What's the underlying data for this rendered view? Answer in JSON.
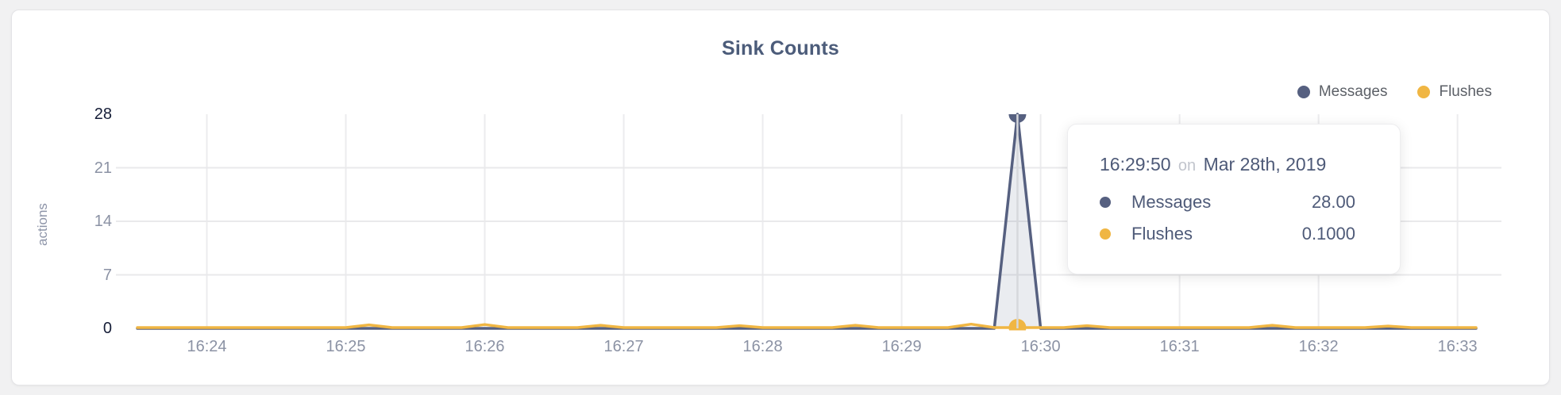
{
  "page": {
    "background": "#f1f1f2",
    "card_background": "#ffffff"
  },
  "chart_data": {
    "type": "line",
    "title": "Sink Counts",
    "xlabel": "",
    "ylabel": "actions",
    "ylim": [
      0,
      28
    ],
    "y_ticks": [
      0,
      7,
      14,
      21,
      28
    ],
    "y_ticks_emphasized": [
      0,
      28
    ],
    "x_ticks": [
      "16:24",
      "16:25",
      "16:26",
      "16:27",
      "16:28",
      "16:29",
      "16:30",
      "16:31",
      "16:32",
      "16:33"
    ],
    "x_start": "16:23:30",
    "x_end": "16:33:08",
    "sample_interval_seconds": 10,
    "grid": true,
    "legend_position": "top-right",
    "series": [
      {
        "name": "Messages",
        "color": "#566080",
        "fill": "rgba(86,96,128,0.12)",
        "baseline": 0,
        "points": [
          {
            "time": "16:29:50",
            "value": 28
          }
        ]
      },
      {
        "name": "Flushes",
        "color": "#f0b643",
        "baseline": 0.1,
        "points": [
          {
            "time": "16:25:10",
            "value": 0.45
          },
          {
            "time": "16:26:00",
            "value": 0.5
          },
          {
            "time": "16:26:50",
            "value": 0.4
          },
          {
            "time": "16:27:50",
            "value": 0.35
          },
          {
            "time": "16:28:40",
            "value": 0.4
          },
          {
            "time": "16:29:30",
            "value": 0.55
          },
          {
            "time": "16:30:20",
            "value": 0.35
          },
          {
            "time": "16:31:40",
            "value": 0.4
          },
          {
            "time": "16:32:30",
            "value": 0.3
          }
        ]
      }
    ],
    "highlight": {
      "time": "16:29:50",
      "crosshair": true,
      "markers": [
        {
          "series": "Messages",
          "value": 28
        },
        {
          "series": "Flushes",
          "value": 0.1
        }
      ]
    }
  },
  "tooltip": {
    "time": "16:29:50",
    "connector": "on",
    "date": "Mar 28th, 2019",
    "rows": [
      {
        "label": "Messages",
        "value": "28.00",
        "color": "#566080"
      },
      {
        "label": "Flushes",
        "value": "0.1000",
        "color": "#f0b643"
      }
    ]
  }
}
